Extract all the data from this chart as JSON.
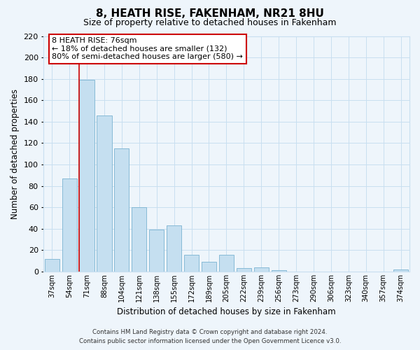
{
  "title": "8, HEATH RISE, FAKENHAM, NR21 8HU",
  "subtitle": "Size of property relative to detached houses in Fakenham",
  "xlabel": "Distribution of detached houses by size in Fakenham",
  "ylabel": "Number of detached properties",
  "bar_labels": [
    "37sqm",
    "54sqm",
    "71sqm",
    "88sqm",
    "104sqm",
    "121sqm",
    "138sqm",
    "155sqm",
    "172sqm",
    "189sqm",
    "205sqm",
    "222sqm",
    "239sqm",
    "256sqm",
    "273sqm",
    "290sqm",
    "306sqm",
    "323sqm",
    "340sqm",
    "357sqm",
    "374sqm"
  ],
  "bar_values": [
    12,
    87,
    179,
    146,
    115,
    60,
    39,
    43,
    16,
    9,
    16,
    3,
    4,
    1,
    0,
    0,
    0,
    0,
    0,
    0,
    2
  ],
  "bar_color": "#c5dff0",
  "bar_edge_color": "#7ab3d0",
  "grid_color": "#c8dff0",
  "annotation_text_line1": "8 HEATH RISE: 76sqm",
  "annotation_text_line2": "← 18% of detached houses are smaller (132)",
  "annotation_text_line3": "80% of semi-detached houses are larger (580) →",
  "annotation_box_facecolor": "#ffffff",
  "annotation_box_edgecolor": "#cc0000",
  "red_line_bar_index": 2,
  "ylim": [
    0,
    220
  ],
  "yticks": [
    0,
    20,
    40,
    60,
    80,
    100,
    120,
    140,
    160,
    180,
    200,
    220
  ],
  "footer_line1": "Contains HM Land Registry data © Crown copyright and database right 2024.",
  "footer_line2": "Contains public sector information licensed under the Open Government Licence v3.0.",
  "background_color": "#eef5fb",
  "title_fontsize": 11,
  "subtitle_fontsize": 9
}
